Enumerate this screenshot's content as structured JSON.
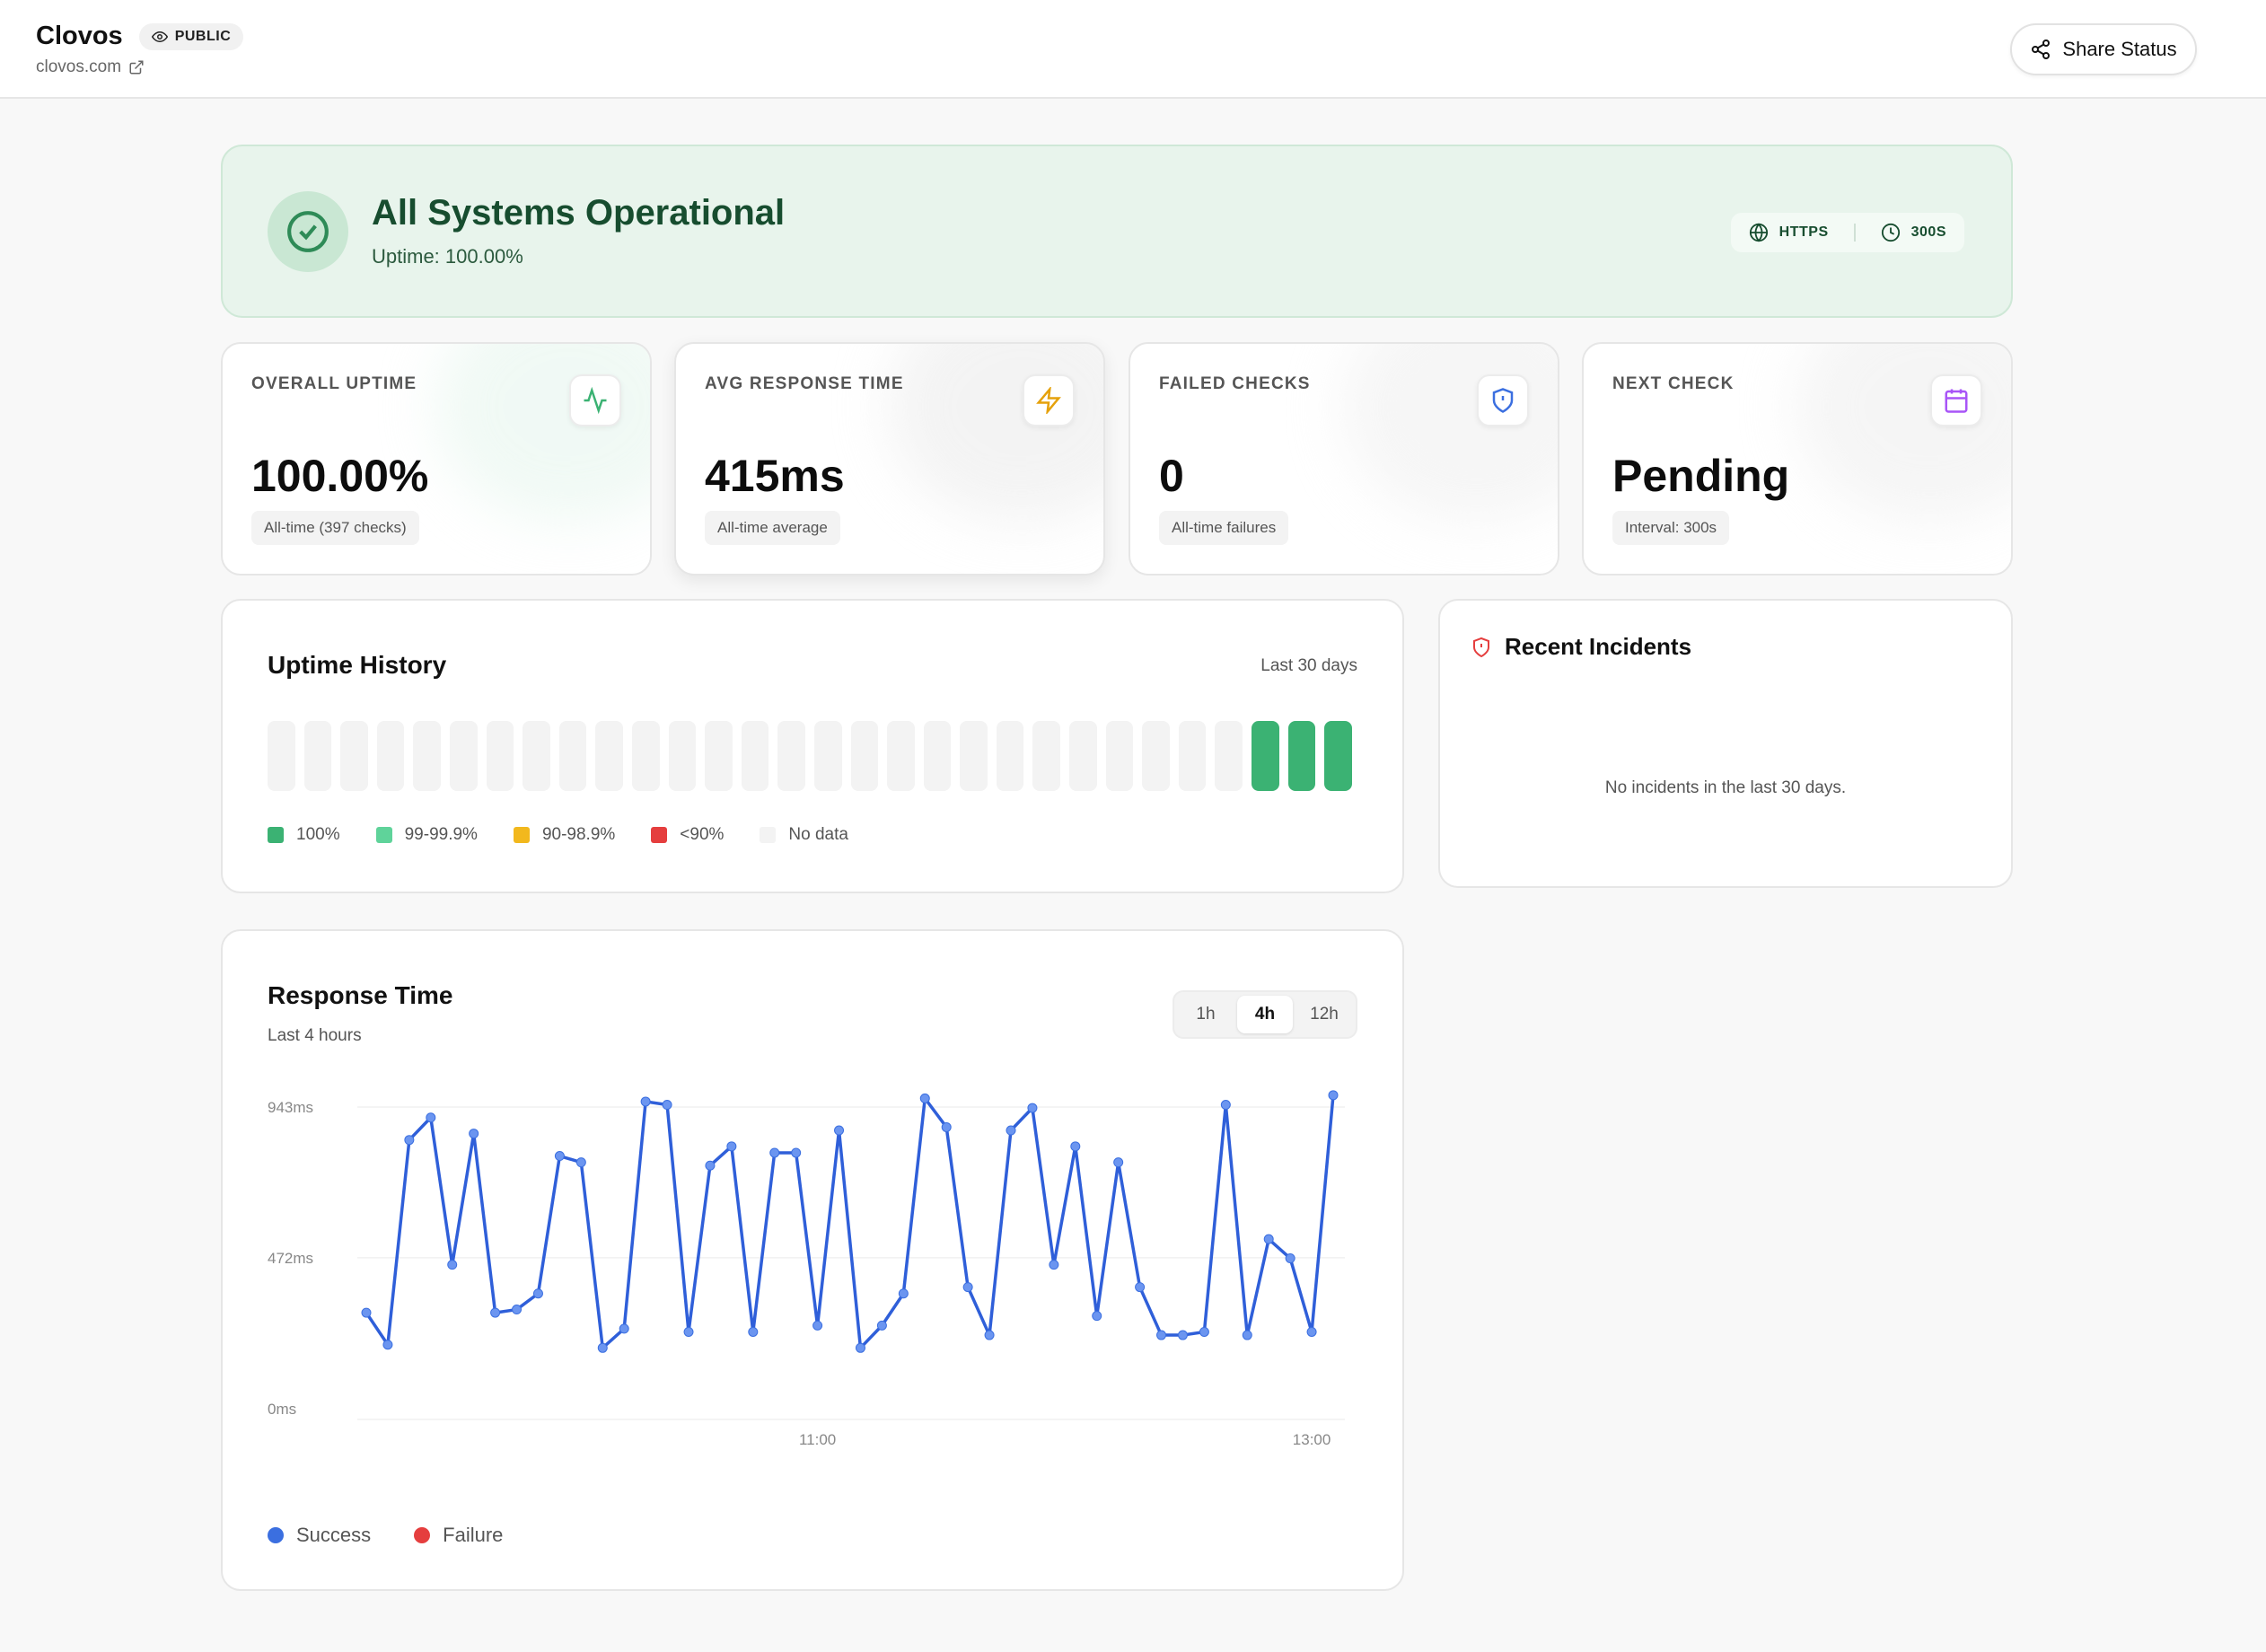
{
  "header": {
    "brand": "Clovos",
    "visibility": "PUBLIC",
    "domain": "clovos.com",
    "share_label": "Share Status"
  },
  "banner": {
    "title": "All Systems Operational",
    "uptime_text": "Uptime: 100.00%",
    "protocol": "HTTPS",
    "interval": "300S",
    "status_color": "#2e8b57"
  },
  "stats": [
    {
      "label": "OVERALL UPTIME",
      "value": "100.00%",
      "note": "All-time (397 checks)",
      "icon": "activity-icon",
      "color": "#3bb273"
    },
    {
      "label": "AVG RESPONSE TIME",
      "value": "415ms",
      "note": "All-time average",
      "icon": "lightning-icon",
      "color": "#e5a10b"
    },
    {
      "label": "FAILED CHECKS",
      "value": "0",
      "note": "All-time failures",
      "icon": "shield-alert-icon",
      "color": "#3b6fe0"
    },
    {
      "label": "NEXT CHECK",
      "value": "Pending",
      "note": "Interval: 300s",
      "icon": "calendar-icon",
      "color": "#a855f7"
    }
  ],
  "uptime_history": {
    "title": "Uptime History",
    "range": "Last 30 days",
    "days": [
      null,
      null,
      null,
      null,
      null,
      null,
      null,
      null,
      null,
      null,
      null,
      null,
      null,
      null,
      null,
      null,
      null,
      null,
      null,
      null,
      null,
      null,
      null,
      null,
      null,
      null,
      null,
      100,
      100,
      100
    ],
    "legend": [
      {
        "label": "100%",
        "color": "#3bb273"
      },
      {
        "label": "99-99.9%",
        "color": "#5fd39a"
      },
      {
        "label": "90-98.9%",
        "color": "#f2b81d"
      },
      {
        "label": "<90%",
        "color": "#e53e3e"
      },
      {
        "label": "No data",
        "color": "#f3f3f3"
      }
    ]
  },
  "incidents": {
    "title": "Recent Incidents",
    "empty_text": "No incidents in the last 30 days."
  },
  "response_time": {
    "title": "Response Time",
    "subtitle": "Last 4 hours",
    "tabs": [
      "1h",
      "4h",
      "12h"
    ],
    "active_tab": "4h",
    "legend": [
      {
        "label": "Success",
        "color": "#3b6fe0"
      },
      {
        "label": "Failure",
        "color": "#e53e3e"
      }
    ]
  },
  "chart_data": {
    "type": "line",
    "y_tick_labels": [
      "943ms",
      "472ms",
      "0ms"
    ],
    "y_ticks": [
      943,
      472,
      0
    ],
    "ylim": [
      0,
      943
    ],
    "x_tick_labels": [
      "11:00",
      "13:00"
    ],
    "x_tick_index": [
      21,
      44
    ],
    "series": [
      {
        "name": "Success",
        "values": [
          300,
          200,
          840,
          910,
          450,
          860,
          300,
          310,
          360,
          790,
          770,
          190,
          250,
          960,
          950,
          240,
          760,
          820,
          240,
          800,
          800,
          260,
          870,
          190,
          260,
          360,
          970,
          880,
          380,
          230,
          870,
          940,
          450,
          820,
          290,
          770,
          380,
          230,
          230,
          240,
          950,
          230,
          530,
          470,
          240,
          980
        ]
      }
    ]
  }
}
